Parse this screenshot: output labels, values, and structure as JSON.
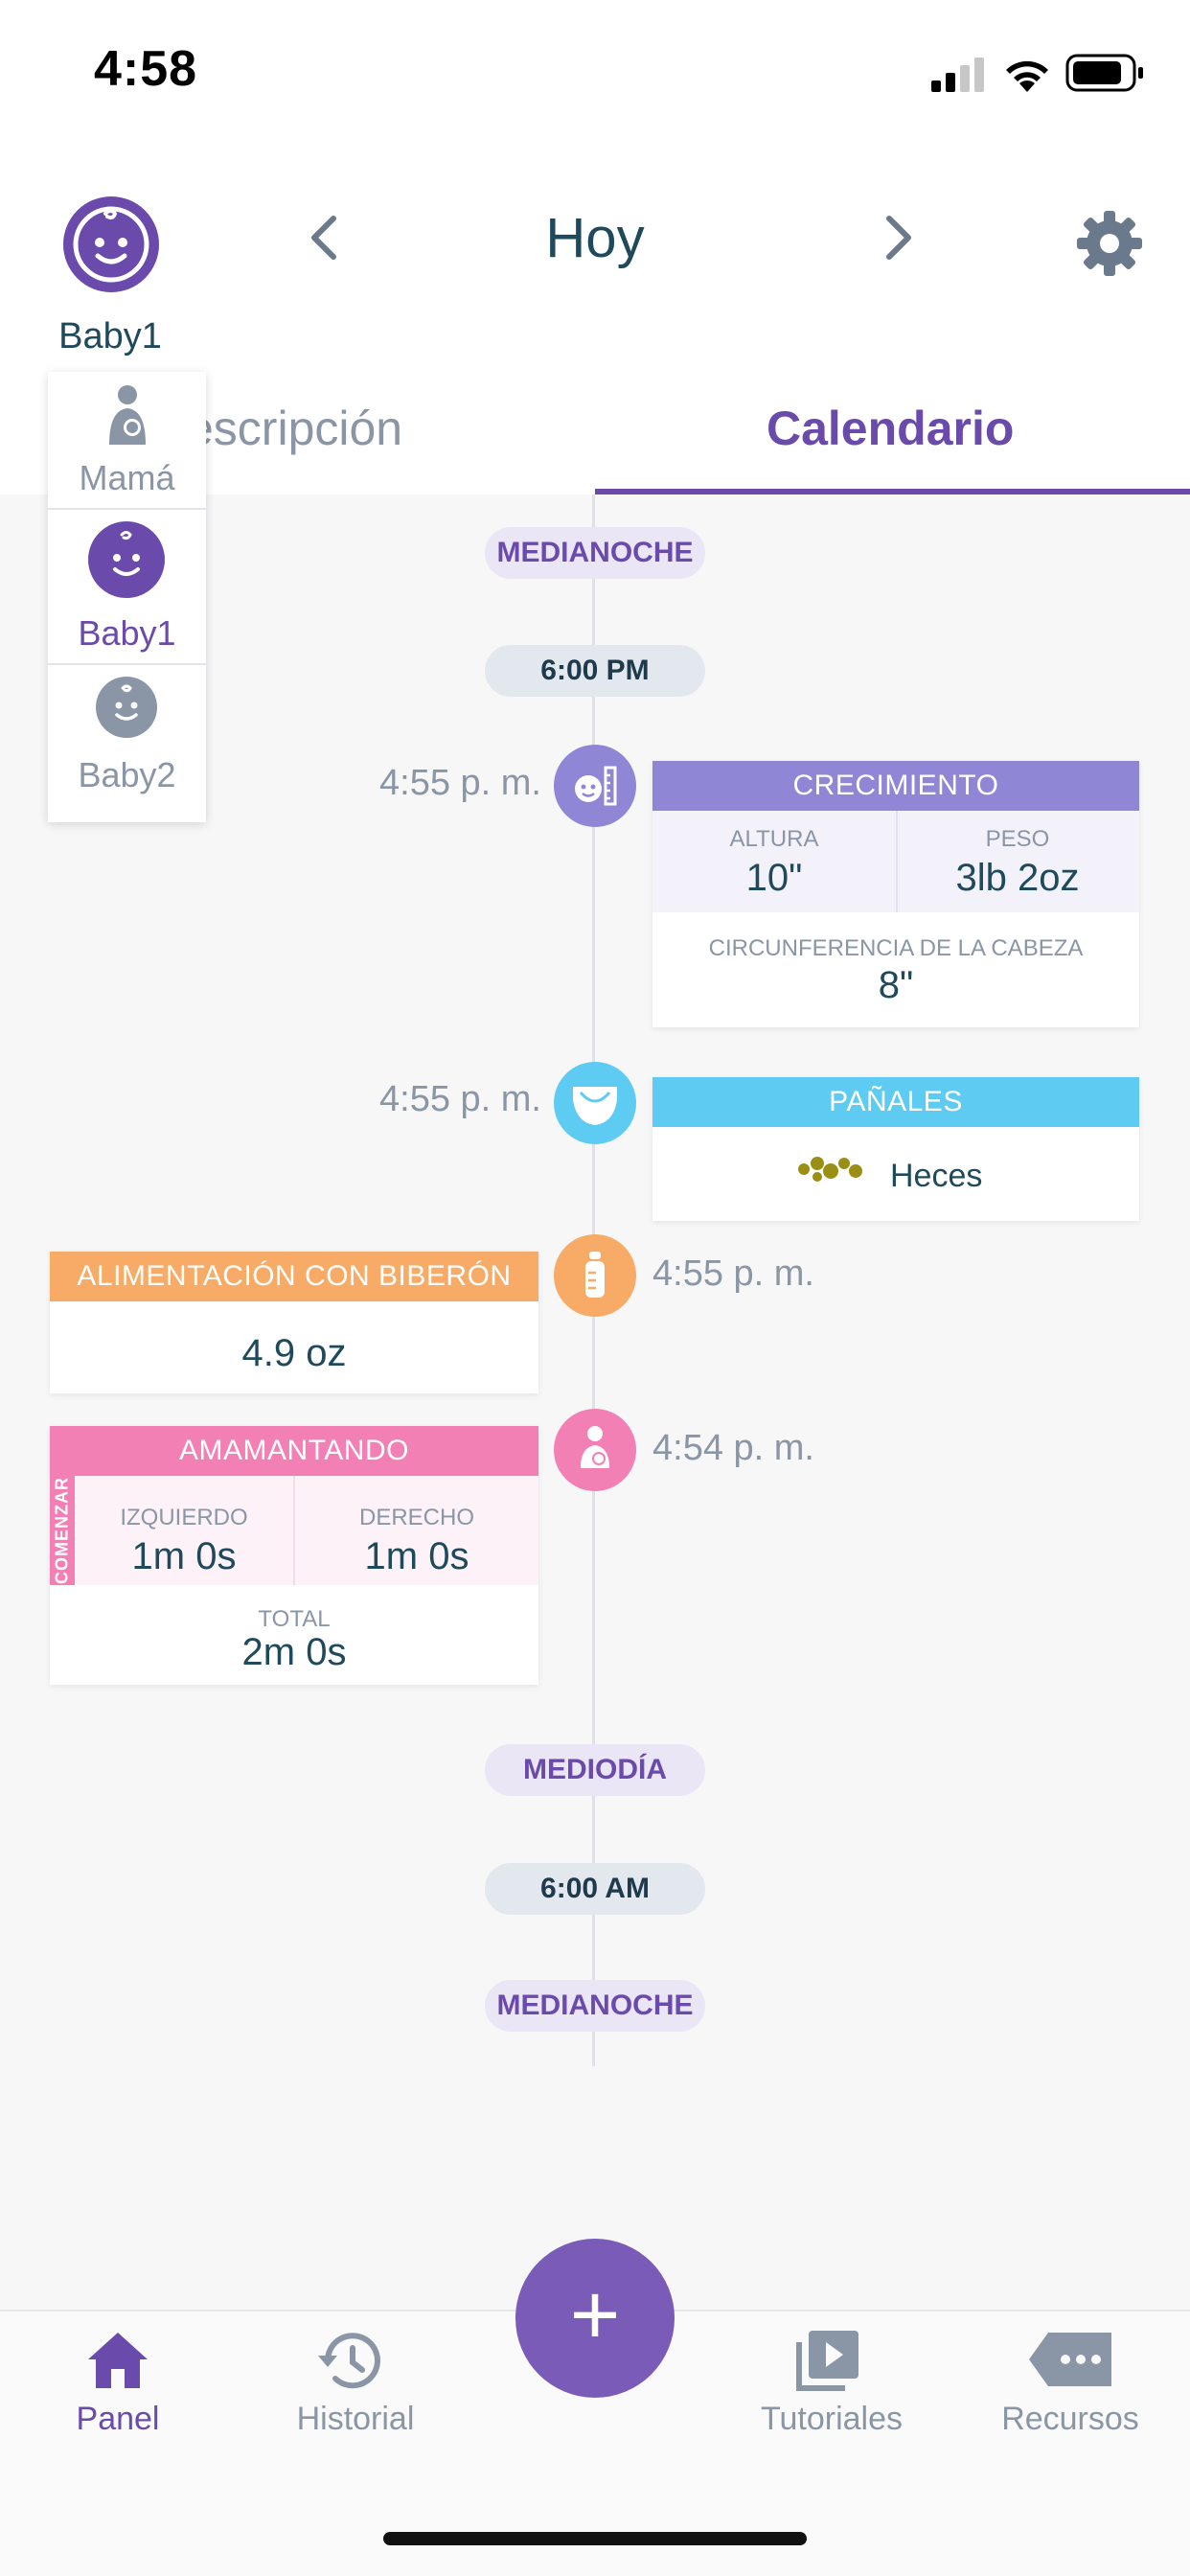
{
  "status_bar": {
    "time": "4:58"
  },
  "header": {
    "baby_name": "Baby1",
    "day_title": "Hoy",
    "prev_icon": "chevron-left-icon",
    "next_icon": "chevron-right-icon",
    "settings_icon": "gear-icon"
  },
  "tabs": [
    {
      "label": "escripción"
    },
    {
      "label": "Calendario"
    }
  ],
  "dropdown": {
    "items": [
      {
        "label": "Mamá"
      },
      {
        "label": "Baby1"
      },
      {
        "label": "Baby2"
      }
    ]
  },
  "timeline": {
    "markers": {
      "midnight_top": "MEDIANOCHE",
      "six_pm": "6:00 PM",
      "noon": "MEDIODÍA",
      "six_am": "6:00 AM",
      "midnight_bottom": "MEDIANOCHE"
    },
    "growth": {
      "time": "4:55 p. m.",
      "title": "CRECIMIENTO",
      "height_label": "ALTURA",
      "height_value": "10\"",
      "weight_label": "PESO",
      "weight_value": "3lb 2oz",
      "head_label": "CIRCUNFERENCIA DE LA CABEZA",
      "head_value": "8\""
    },
    "diapers": {
      "time": "4:55 p. m.",
      "title": "PAÑALES",
      "value": "Heces"
    },
    "bottle": {
      "time": "4:55 p. m.",
      "title": "ALIMENTACIÓN CON BIBERÓN",
      "value": "4.9 oz"
    },
    "breastfeeding": {
      "time": "4:54 p. m.",
      "title": "AMAMANTANDO",
      "start_tag": "COMENZAR",
      "left_label": "IZQUIERDO",
      "left_value": "1m 0s",
      "right_label": "DERECHO",
      "right_value": "1m 0s",
      "total_label": "TOTAL",
      "total_value": "2m 0s"
    }
  },
  "tabbar": {
    "items": [
      {
        "label": "Panel",
        "icon": "home-icon"
      },
      {
        "label": "Historial",
        "icon": "history-icon"
      },
      {
        "label": "Tutoriales",
        "icon": "play-library-icon"
      },
      {
        "label": "Recursos",
        "icon": "resources-tag-icon"
      }
    ],
    "fab_label": "+"
  },
  "colors": {
    "accent": "#6a4bab",
    "growth": "#8f86d6",
    "diapers": "#5ecbf2",
    "bottle": "#f7ab66",
    "breastfeeding": "#f280b5"
  }
}
